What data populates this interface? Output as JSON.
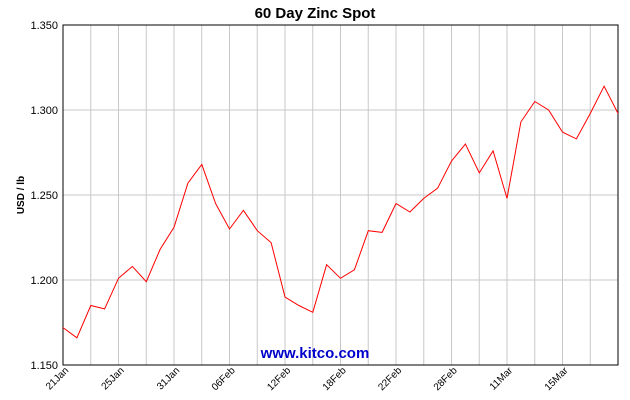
{
  "chart_data": {
    "type": "line",
    "title": "60 Day Zinc Spot",
    "ylabel": "USD / lb",
    "xlabel": "",
    "ylim": [
      1.15,
      1.35
    ],
    "yticks": [
      "1.150",
      "1.200",
      "1.250",
      "1.300",
      "1.350"
    ],
    "xticks": [
      "21Jan",
      "25Jan",
      "31Jan",
      "06Feb",
      "12Feb",
      "18Feb",
      "22Feb",
      "28Feb",
      "11Mar",
      "15Mar"
    ],
    "grid": true,
    "line_color": "#ff0000",
    "series": [
      {
        "values": [
          1.172,
          1.166,
          1.185,
          1.183,
          1.201,
          1.208,
          1.199,
          1.218,
          1.231,
          1.257,
          1.268,
          1.245,
          1.23,
          1.241,
          1.229,
          1.222,
          1.19,
          1.185,
          1.181,
          1.209,
          1.201,
          1.206,
          1.229,
          1.228,
          1.245,
          1.24,
          1.248,
          1.254,
          1.27,
          1.28,
          1.263,
          1.276,
          1.248,
          1.293,
          1.305,
          1.3,
          1.287,
          1.283,
          1.298,
          1.314,
          1.298
        ]
      }
    ]
  },
  "watermark": "www.kitco.com"
}
